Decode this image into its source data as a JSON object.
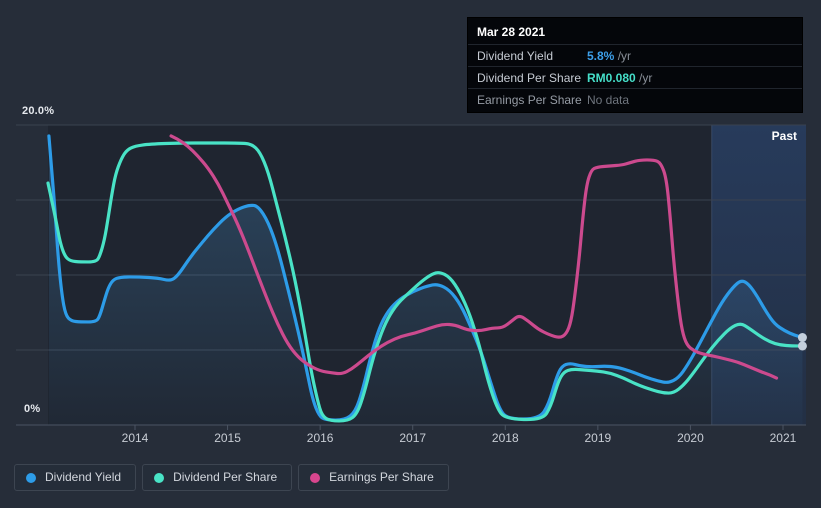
{
  "tooltip": {
    "date": "Mar 28 2021",
    "rows": [
      {
        "label": "Dividend Yield",
        "value": "5.8%",
        "suffix": " /yr",
        "value_color": "#3da0ea"
      },
      {
        "label": "Dividend Per Share",
        "value": "RM0.080",
        "suffix": " /yr",
        "value_color": "#45dfc9"
      },
      {
        "label": "Earnings Per Share",
        "value": "No data",
        "suffix": "",
        "value_color": "#6f757e"
      }
    ]
  },
  "chart": {
    "y_top_label": "20.0%",
    "y_bottom_label": "0%",
    "past_label": "Past"
  },
  "legend": {
    "items": [
      {
        "label": "Dividend Yield",
        "color": "#2d9ce8"
      },
      {
        "label": "Dividend Per Share",
        "color": "#49e3c6"
      },
      {
        "label": "Earnings Per Share",
        "color": "#d8468e"
      }
    ]
  },
  "chart_data": {
    "type": "line",
    "title": "Dividend Yield / Dividend Per Share / Earnings Per Share history",
    "x_ticks": [
      2014,
      2015,
      2016,
      2017,
      2018,
      2019,
      2020,
      2021
    ],
    "x_range": [
      2013.05,
      2021.25
    ],
    "ylim": [
      0,
      20
    ],
    "y_unit": "%",
    "y_gridlines": [
      0,
      5,
      10,
      15,
      20
    ],
    "grid": true,
    "legend_position": "bottom-left",
    "past_region_start": 2020.23,
    "marker_color": "#c3cfdc",
    "series": [
      {
        "name": "Dividend Yield",
        "color": "#2d9ce8",
        "area_fill": true,
        "end_marker": true,
        "points": [
          [
            2013.07,
            19.27
          ],
          [
            2013.1,
            17.0
          ],
          [
            2013.14,
            14.0
          ],
          [
            2013.17,
            11.13
          ],
          [
            2013.21,
            8.67
          ],
          [
            2013.25,
            7.33
          ],
          [
            2013.31,
            6.93
          ],
          [
            2013.41,
            6.87
          ],
          [
            2013.58,
            6.87
          ],
          [
            2013.62,
            7.27
          ],
          [
            2013.67,
            8.33
          ],
          [
            2013.71,
            9.13
          ],
          [
            2013.76,
            9.67
          ],
          [
            2013.84,
            9.87
          ],
          [
            2014.05,
            9.87
          ],
          [
            2014.25,
            9.8
          ],
          [
            2014.38,
            9.6
          ],
          [
            2014.46,
            9.93
          ],
          [
            2014.59,
            11.13
          ],
          [
            2014.72,
            12.13
          ],
          [
            2014.85,
            13.07
          ],
          [
            2014.98,
            13.87
          ],
          [
            2015.11,
            14.4
          ],
          [
            2015.24,
            14.67
          ],
          [
            2015.33,
            14.6
          ],
          [
            2015.44,
            13.53
          ],
          [
            2015.54,
            11.8
          ],
          [
            2015.65,
            9.13
          ],
          [
            2015.76,
            6.33
          ],
          [
            2015.85,
            3.8
          ],
          [
            2015.92,
            1.67
          ],
          [
            2015.99,
            0.6
          ],
          [
            2016.06,
            0.33
          ],
          [
            2016.27,
            0.33
          ],
          [
            2016.38,
            0.87
          ],
          [
            2016.46,
            2.33
          ],
          [
            2016.55,
            4.67
          ],
          [
            2016.64,
            6.53
          ],
          [
            2016.74,
            7.67
          ],
          [
            2016.86,
            8.4
          ],
          [
            2017.01,
            8.93
          ],
          [
            2017.16,
            9.27
          ],
          [
            2017.27,
            9.4
          ],
          [
            2017.4,
            9.0
          ],
          [
            2017.52,
            8.0
          ],
          [
            2017.63,
            6.53
          ],
          [
            2017.74,
            4.87
          ],
          [
            2017.85,
            2.67
          ],
          [
            2017.94,
            1.0
          ],
          [
            2018.03,
            0.4
          ],
          [
            2018.37,
            0.4
          ],
          [
            2018.47,
            1.4
          ],
          [
            2018.55,
            3.13
          ],
          [
            2018.61,
            3.93
          ],
          [
            2018.7,
            4.13
          ],
          [
            2018.81,
            3.93
          ],
          [
            2018.94,
            3.87
          ],
          [
            2019.07,
            3.93
          ],
          [
            2019.2,
            3.87
          ],
          [
            2019.35,
            3.6
          ],
          [
            2019.51,
            3.2
          ],
          [
            2019.65,
            2.93
          ],
          [
            2019.76,
            2.8
          ],
          [
            2019.87,
            3.13
          ],
          [
            2019.97,
            4.0
          ],
          [
            2020.08,
            5.2
          ],
          [
            2020.21,
            6.73
          ],
          [
            2020.34,
            8.2
          ],
          [
            2020.46,
            9.2
          ],
          [
            2020.55,
            9.67
          ],
          [
            2020.63,
            9.4
          ],
          [
            2020.72,
            8.6
          ],
          [
            2020.82,
            7.53
          ],
          [
            2020.91,
            6.73
          ],
          [
            2021.02,
            6.27
          ],
          [
            2021.12,
            6.0
          ],
          [
            2021.21,
            5.83
          ]
        ]
      },
      {
        "name": "Dividend Per Share",
        "color": "#49e3c6",
        "area_fill": false,
        "end_marker": true,
        "points": [
          [
            2013.06,
            16.13
          ],
          [
            2013.1,
            15.0
          ],
          [
            2013.15,
            13.53
          ],
          [
            2013.19,
            12.2
          ],
          [
            2013.24,
            11.27
          ],
          [
            2013.3,
            10.93
          ],
          [
            2013.41,
            10.87
          ],
          [
            2013.58,
            10.87
          ],
          [
            2013.62,
            11.27
          ],
          [
            2013.67,
            12.33
          ],
          [
            2013.71,
            13.8
          ],
          [
            2013.75,
            15.4
          ],
          [
            2013.79,
            16.73
          ],
          [
            2013.85,
            17.73
          ],
          [
            2013.91,
            18.33
          ],
          [
            2014.0,
            18.6
          ],
          [
            2014.16,
            18.73
          ],
          [
            2014.49,
            18.8
          ],
          [
            2014.81,
            18.8
          ],
          [
            2015.13,
            18.8
          ],
          [
            2015.26,
            18.73
          ],
          [
            2015.35,
            18.2
          ],
          [
            2015.44,
            16.87
          ],
          [
            2015.53,
            14.73
          ],
          [
            2015.63,
            12.33
          ],
          [
            2015.73,
            9.67
          ],
          [
            2015.83,
            6.33
          ],
          [
            2015.9,
            3.67
          ],
          [
            2015.97,
            1.67
          ],
          [
            2016.02,
            0.6
          ],
          [
            2016.11,
            0.27
          ],
          [
            2016.3,
            0.27
          ],
          [
            2016.4,
            0.73
          ],
          [
            2016.48,
            2.2
          ],
          [
            2016.56,
            4.2
          ],
          [
            2016.64,
            5.8
          ],
          [
            2016.73,
            7.13
          ],
          [
            2016.84,
            8.13
          ],
          [
            2016.97,
            8.87
          ],
          [
            2017.1,
            9.6
          ],
          [
            2017.21,
            10.07
          ],
          [
            2017.29,
            10.2
          ],
          [
            2017.4,
            9.87
          ],
          [
            2017.51,
            8.87
          ],
          [
            2017.62,
            7.33
          ],
          [
            2017.72,
            5.33
          ],
          [
            2017.81,
            3.0
          ],
          [
            2017.91,
            1.13
          ],
          [
            2018.0,
            0.4
          ],
          [
            2018.4,
            0.33
          ],
          [
            2018.49,
            1.2
          ],
          [
            2018.57,
            2.87
          ],
          [
            2018.63,
            3.53
          ],
          [
            2018.72,
            3.73
          ],
          [
            2018.85,
            3.67
          ],
          [
            2018.99,
            3.6
          ],
          [
            2019.13,
            3.47
          ],
          [
            2019.28,
            3.13
          ],
          [
            2019.43,
            2.67
          ],
          [
            2019.59,
            2.33
          ],
          [
            2019.71,
            2.13
          ],
          [
            2019.82,
            2.13
          ],
          [
            2019.93,
            2.67
          ],
          [
            2020.04,
            3.53
          ],
          [
            2020.17,
            4.67
          ],
          [
            2020.3,
            5.67
          ],
          [
            2020.43,
            6.47
          ],
          [
            2020.54,
            6.8
          ],
          [
            2020.63,
            6.47
          ],
          [
            2020.75,
            5.93
          ],
          [
            2020.86,
            5.53
          ],
          [
            2020.97,
            5.33
          ],
          [
            2021.1,
            5.27
          ],
          [
            2021.21,
            5.27
          ]
        ]
      },
      {
        "name": "Earnings Per Share",
        "color": "#cc4a8e",
        "area_fill": false,
        "end_marker": false,
        "points": [
          [
            2014.39,
            19.27
          ],
          [
            2014.46,
            19.07
          ],
          [
            2014.57,
            18.6
          ],
          [
            2014.68,
            17.93
          ],
          [
            2014.79,
            17.13
          ],
          [
            2014.9,
            16.07
          ],
          [
            2015.0,
            14.8
          ],
          [
            2015.11,
            13.4
          ],
          [
            2015.22,
            11.73
          ],
          [
            2015.33,
            9.93
          ],
          [
            2015.44,
            8.2
          ],
          [
            2015.54,
            6.73
          ],
          [
            2015.65,
            5.4
          ],
          [
            2015.76,
            4.53
          ],
          [
            2015.87,
            4.0
          ],
          [
            2016.0,
            3.6
          ],
          [
            2016.13,
            3.47
          ],
          [
            2016.24,
            3.4
          ],
          [
            2016.34,
            3.73
          ],
          [
            2016.45,
            4.27
          ],
          [
            2016.58,
            4.93
          ],
          [
            2016.73,
            5.53
          ],
          [
            2016.88,
            5.93
          ],
          [
            2017.03,
            6.13
          ],
          [
            2017.19,
            6.47
          ],
          [
            2017.33,
            6.73
          ],
          [
            2017.46,
            6.67
          ],
          [
            2017.59,
            6.33
          ],
          [
            2017.73,
            6.27
          ],
          [
            2017.86,
            6.47
          ],
          [
            2017.97,
            6.47
          ],
          [
            2018.07,
            6.93
          ],
          [
            2018.15,
            7.33
          ],
          [
            2018.25,
            6.93
          ],
          [
            2018.35,
            6.4
          ],
          [
            2018.48,
            6.0
          ],
          [
            2018.59,
            5.8
          ],
          [
            2018.66,
            6.07
          ],
          [
            2018.71,
            6.87
          ],
          [
            2018.75,
            8.53
          ],
          [
            2018.8,
            11.2
          ],
          [
            2018.84,
            14.0
          ],
          [
            2018.88,
            16.07
          ],
          [
            2018.93,
            17.0
          ],
          [
            2018.99,
            17.2
          ],
          [
            2019.13,
            17.27
          ],
          [
            2019.26,
            17.33
          ],
          [
            2019.34,
            17.47
          ],
          [
            2019.45,
            17.67
          ],
          [
            2019.61,
            17.67
          ],
          [
            2019.68,
            17.47
          ],
          [
            2019.74,
            16.47
          ],
          [
            2019.78,
            14.0
          ],
          [
            2019.82,
            10.87
          ],
          [
            2019.87,
            8.0
          ],
          [
            2019.91,
            6.27
          ],
          [
            2019.96,
            5.33
          ],
          [
            2020.04,
            4.93
          ],
          [
            2020.13,
            4.73
          ],
          [
            2020.25,
            4.6
          ],
          [
            2020.38,
            4.4
          ],
          [
            2020.51,
            4.2
          ],
          [
            2020.64,
            3.87
          ],
          [
            2020.77,
            3.53
          ],
          [
            2020.86,
            3.33
          ],
          [
            2020.93,
            3.13
          ]
        ]
      }
    ]
  }
}
